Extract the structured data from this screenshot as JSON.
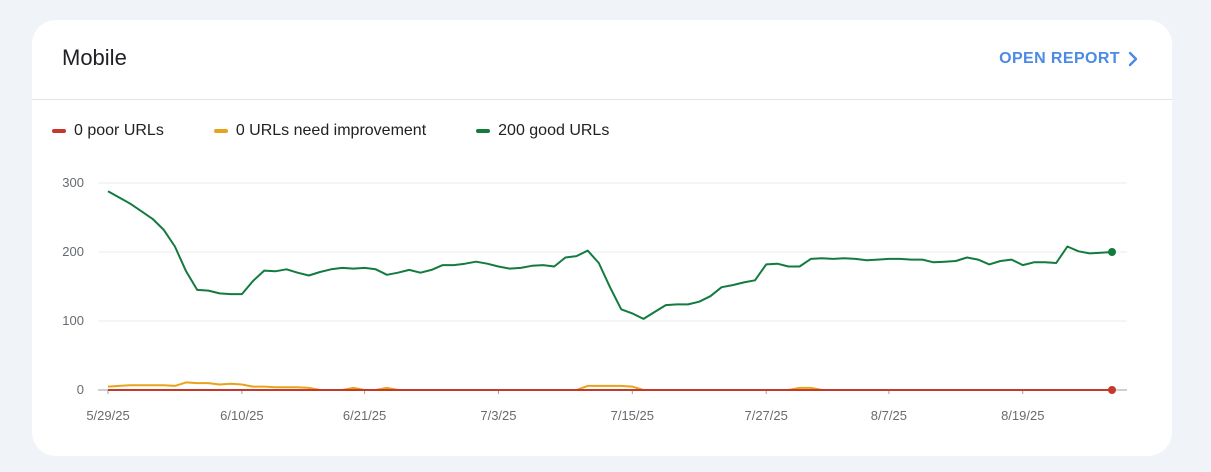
{
  "card": {
    "title": "Mobile",
    "open_report_label": "OPEN REPORT"
  },
  "legend": [
    {
      "label": "0 poor URLs",
      "color": "#c5392b"
    },
    {
      "label": "0 URLs need improvement",
      "color": "#e8a31d"
    },
    {
      "label": "200 good URLs",
      "color": "#137b3e"
    }
  ],
  "colors": {
    "accent": "#4b8ae6",
    "poor": "#c5392b",
    "needs_improvement": "#e8a31d",
    "good": "#137b3e"
  },
  "chart_data": {
    "type": "line",
    "x_ticks": [
      {
        "label": "5/29/25",
        "index": 0
      },
      {
        "label": "6/10/25",
        "index": 12
      },
      {
        "label": "6/21/25",
        "index": 23
      },
      {
        "label": "7/3/25",
        "index": 35
      },
      {
        "label": "7/15/25",
        "index": 47
      },
      {
        "label": "7/27/25",
        "index": 59
      },
      {
        "label": "8/7/25",
        "index": 70
      },
      {
        "label": "8/19/25",
        "index": 82
      }
    ],
    "y_ticks": [
      0,
      100,
      200,
      300
    ],
    "ylim": [
      0,
      300
    ],
    "num_points": 91,
    "grid": true,
    "legend_placement": "top-left",
    "series": [
      {
        "name": "200 good URLs",
        "color": "#137b3e",
        "values": [
          288,
          279,
          270,
          259,
          248,
          232,
          208,
          172,
          145,
          144,
          140,
          139,
          139,
          158,
          173,
          172,
          175,
          170,
          166,
          171,
          175,
          177,
          176,
          177,
          175,
          167,
          170,
          174,
          170,
          174,
          181,
          181,
          183,
          186,
          183,
          179,
          176,
          177,
          180,
          181,
          179,
          192,
          194,
          202,
          184,
          149,
          117,
          111,
          103,
          113,
          123,
          124,
          124,
          128,
          136,
          149,
          152,
          156,
          159,
          182,
          183,
          179,
          179,
          190,
          191,
          190,
          191,
          190,
          188,
          189,
          190,
          190,
          189,
          189,
          185,
          186,
          187,
          192,
          189,
          182,
          187,
          189,
          181,
          185,
          185,
          184,
          208,
          201,
          198,
          199,
          200
        ]
      },
      {
        "name": "0 URLs need improvement",
        "color": "#e8a31d",
        "values": [
          5,
          6,
          7,
          7,
          7,
          7,
          6,
          11,
          10,
          10,
          8,
          9,
          8,
          5,
          5,
          4,
          4,
          4,
          3,
          0,
          0,
          0,
          3,
          0,
          0,
          3,
          0,
          0,
          0,
          0,
          0,
          0,
          0,
          0,
          0,
          0,
          0,
          0,
          0,
          0,
          0,
          0,
          0,
          6,
          6,
          6,
          6,
          5,
          0,
          0,
          0,
          0,
          0,
          0,
          0,
          0,
          0,
          0,
          0,
          0,
          0,
          0,
          3,
          3,
          0,
          0,
          0,
          0,
          0,
          0,
          0,
          0,
          0,
          0,
          0,
          0,
          0,
          0,
          0,
          0,
          0,
          0,
          0,
          0,
          0,
          0,
          0,
          0,
          0,
          0,
          0
        ]
      },
      {
        "name": "0 poor URLs",
        "color": "#c5392b",
        "values": [
          0,
          0,
          0,
          0,
          0,
          0,
          0,
          0,
          0,
          0,
          0,
          0,
          0,
          0,
          0,
          0,
          0,
          0,
          0,
          0,
          0,
          0,
          0,
          0,
          0,
          0,
          0,
          0,
          0,
          0,
          0,
          0,
          0,
          0,
          0,
          0,
          0,
          0,
          0,
          0,
          0,
          0,
          0,
          0,
          0,
          0,
          0,
          0,
          0,
          0,
          0,
          0,
          0,
          0,
          0,
          0,
          0,
          0,
          0,
          0,
          0,
          0,
          0,
          0,
          0,
          0,
          0,
          0,
          0,
          0,
          0,
          0,
          0,
          0,
          0,
          0,
          0,
          0,
          0,
          0,
          0,
          0,
          0,
          0,
          0,
          0,
          0,
          0,
          0,
          0,
          0
        ]
      }
    ]
  }
}
